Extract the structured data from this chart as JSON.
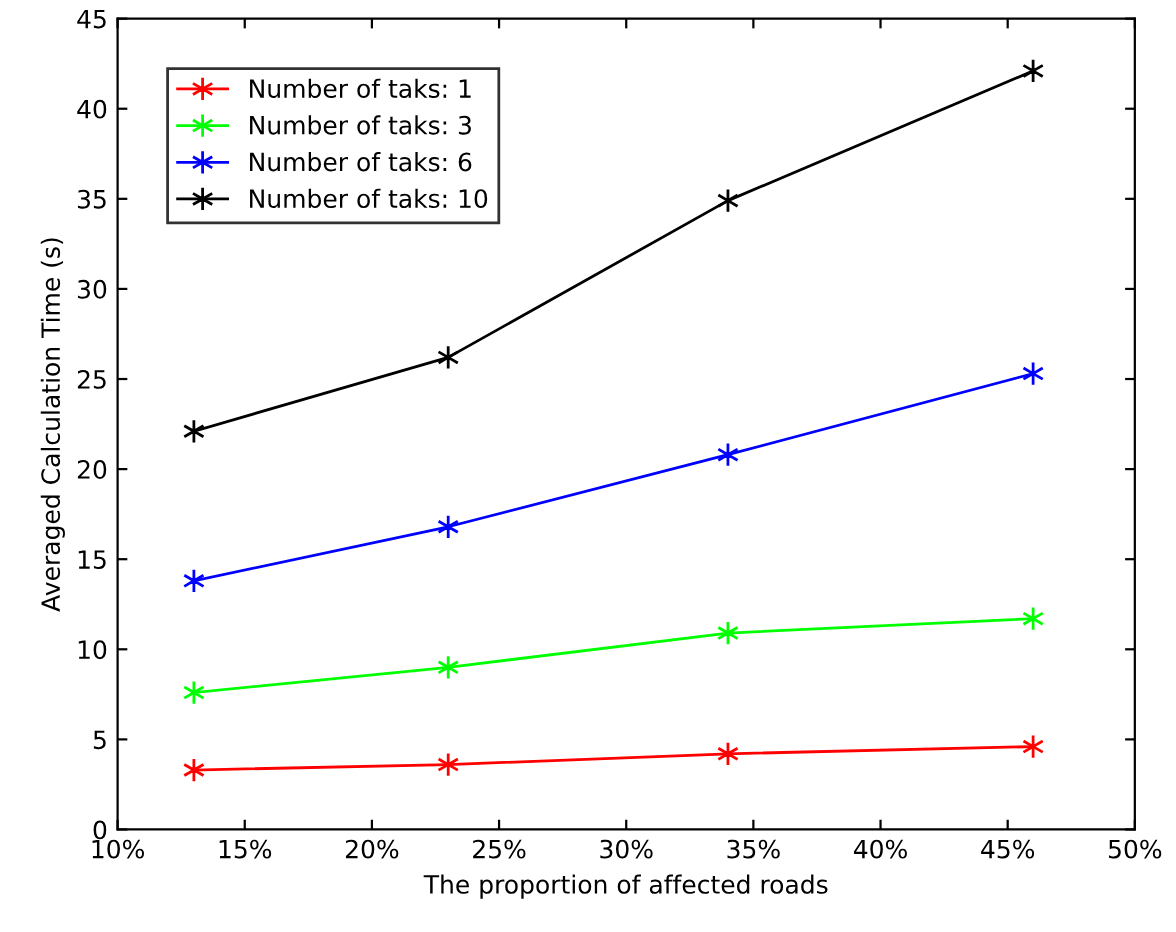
{
  "chart_data": {
    "type": "line",
    "xlabel": "The proportion of affected roads",
    "ylabel": "Averaged Calculation Time (s)",
    "x": [
      13,
      23,
      34,
      46
    ],
    "series": [
      {
        "name": "Number of taks: 1",
        "color": "#ff0000",
        "values": [
          3.3,
          3.6,
          4.2,
          4.6
        ]
      },
      {
        "name": "Number of taks: 3",
        "color": "#00ff00",
        "values": [
          7.6,
          9.0,
          10.9,
          11.7
        ]
      },
      {
        "name": "Number of taks: 6",
        "color": "#0000ff",
        "values": [
          13.8,
          16.8,
          20.8,
          25.3
        ]
      },
      {
        "name": "Number of taks: 10",
        "color": "#000000",
        "values": [
          22.1,
          26.2,
          34.9,
          42.1
        ]
      }
    ],
    "xlim": [
      10,
      50
    ],
    "xticks": [
      {
        "value": 10,
        "label": "10%"
      },
      {
        "value": 15,
        "label": "15%"
      },
      {
        "value": 20,
        "label": "20%"
      },
      {
        "value": 25,
        "label": "25%"
      },
      {
        "value": 30,
        "label": "30%"
      },
      {
        "value": 35,
        "label": "35%"
      },
      {
        "value": 40,
        "label": "40%"
      },
      {
        "value": 45,
        "label": "45%"
      },
      {
        "value": 50,
        "label": "50%"
      }
    ],
    "ylim": [
      0,
      45
    ],
    "yticks": [
      0,
      5,
      10,
      15,
      20,
      25,
      30,
      35,
      40,
      45
    ],
    "grid": false,
    "legend": "top left",
    "marker": "cross",
    "line_style": "solid"
  }
}
